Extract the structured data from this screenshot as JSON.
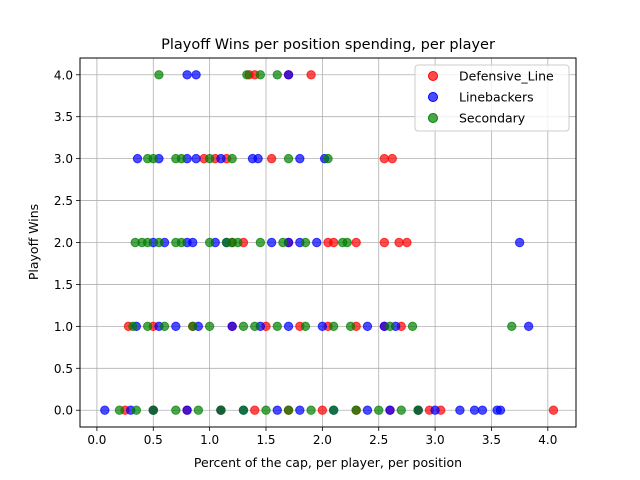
{
  "chart_data": {
    "type": "scatter",
    "title": "Playoff Wins per position spending, per player",
    "xlabel": "Percent of the cap, per player, per position",
    "ylabel": "Playoff Wins",
    "xlim": [
      -0.15,
      4.25
    ],
    "ylim": [
      -0.2,
      4.2
    ],
    "xticks": [
      0.0,
      0.5,
      1.0,
      1.5,
      2.0,
      2.5,
      3.0,
      3.5,
      4.0
    ],
    "xtick_labels": [
      "0.0",
      "0.5",
      "1.0",
      "1.5",
      "2.0",
      "2.5",
      "3.0",
      "3.5",
      "4.0"
    ],
    "yticks": [
      0.0,
      0.5,
      1.0,
      1.5,
      2.0,
      2.5,
      3.0,
      3.5,
      4.0
    ],
    "ytick_labels": [
      "0.0",
      "0.5",
      "1.0",
      "1.5",
      "2.0",
      "2.5",
      "3.0",
      "3.5",
      "4.0"
    ],
    "grid": true,
    "legend_position": "top-right",
    "series": [
      {
        "name": "Defensive_Line",
        "color": "#ff0000",
        "points": [
          [
            1.35,
            4
          ],
          [
            1.4,
            4
          ],
          [
            1.7,
            4
          ],
          [
            1.9,
            4
          ],
          [
            0.95,
            3
          ],
          [
            1.05,
            3
          ],
          [
            1.15,
            3
          ],
          [
            1.55,
            3
          ],
          [
            2.55,
            3
          ],
          [
            2.62,
            3
          ],
          [
            1.2,
            2
          ],
          [
            1.3,
            2
          ],
          [
            1.7,
            2
          ],
          [
            2.05,
            2
          ],
          [
            2.1,
            2
          ],
          [
            2.3,
            2
          ],
          [
            2.55,
            2
          ],
          [
            2.68,
            2
          ],
          [
            2.75,
            2
          ],
          [
            0.28,
            1
          ],
          [
            0.5,
            1
          ],
          [
            0.85,
            1
          ],
          [
            1.2,
            1
          ],
          [
            1.5,
            1
          ],
          [
            1.8,
            1
          ],
          [
            2.05,
            1
          ],
          [
            2.3,
            1
          ],
          [
            2.55,
            1
          ],
          [
            2.7,
            1
          ],
          [
            0.25,
            0
          ],
          [
            0.5,
            0
          ],
          [
            0.8,
            0
          ],
          [
            1.1,
            0
          ],
          [
            1.4,
            0
          ],
          [
            1.7,
            0
          ],
          [
            2.0,
            0
          ],
          [
            2.3,
            0
          ],
          [
            2.6,
            0
          ],
          [
            2.85,
            0
          ],
          [
            2.95,
            0
          ],
          [
            3.05,
            0
          ],
          [
            4.05,
            0
          ]
        ]
      },
      {
        "name": "Linebackers",
        "color": "#0000ff",
        "points": [
          [
            0.8,
            4
          ],
          [
            0.88,
            4
          ],
          [
            1.7,
            4
          ],
          [
            0.36,
            3
          ],
          [
            0.55,
            3
          ],
          [
            0.8,
            3
          ],
          [
            0.88,
            3
          ],
          [
            1.1,
            3
          ],
          [
            1.38,
            3
          ],
          [
            1.43,
            3
          ],
          [
            1.8,
            3
          ],
          [
            2.02,
            3
          ],
          [
            0.5,
            2
          ],
          [
            0.6,
            2
          ],
          [
            0.8,
            2
          ],
          [
            0.85,
            2
          ],
          [
            1.05,
            2
          ],
          [
            1.15,
            2
          ],
          [
            1.55,
            2
          ],
          [
            1.7,
            2
          ],
          [
            1.8,
            2
          ],
          [
            1.95,
            2
          ],
          [
            3.75,
            2
          ],
          [
            0.35,
            1
          ],
          [
            0.55,
            1
          ],
          [
            0.7,
            1
          ],
          [
            0.9,
            1
          ],
          [
            1.2,
            1
          ],
          [
            1.45,
            1
          ],
          [
            1.7,
            1
          ],
          [
            2.0,
            1
          ],
          [
            2.4,
            1
          ],
          [
            2.55,
            1
          ],
          [
            2.65,
            1
          ],
          [
            3.83,
            1
          ],
          [
            0.07,
            0
          ],
          [
            0.3,
            0
          ],
          [
            0.5,
            0
          ],
          [
            0.8,
            0
          ],
          [
            1.1,
            0
          ],
          [
            1.3,
            0
          ],
          [
            1.6,
            0
          ],
          [
            1.8,
            0
          ],
          [
            2.1,
            0
          ],
          [
            2.4,
            0
          ],
          [
            2.6,
            0
          ],
          [
            2.85,
            0
          ],
          [
            3.0,
            0
          ],
          [
            3.22,
            0
          ],
          [
            3.35,
            0
          ],
          [
            3.42,
            0
          ],
          [
            3.55,
            0
          ],
          [
            3.58,
            0
          ]
        ]
      },
      {
        "name": "Secondary",
        "color": "#008000",
        "points": [
          [
            0.55,
            4
          ],
          [
            1.33,
            4
          ],
          [
            1.45,
            4
          ],
          [
            1.6,
            4
          ],
          [
            0.45,
            3
          ],
          [
            0.5,
            3
          ],
          [
            0.7,
            3
          ],
          [
            0.75,
            3
          ],
          [
            1.0,
            3
          ],
          [
            1.2,
            3
          ],
          [
            1.7,
            3
          ],
          [
            2.05,
            3
          ],
          [
            0.34,
            2
          ],
          [
            0.4,
            2
          ],
          [
            0.45,
            2
          ],
          [
            0.55,
            2
          ],
          [
            0.7,
            2
          ],
          [
            0.75,
            2
          ],
          [
            1.0,
            2
          ],
          [
            1.15,
            2
          ],
          [
            1.2,
            2
          ],
          [
            1.25,
            2
          ],
          [
            1.45,
            2
          ],
          [
            1.65,
            2
          ],
          [
            1.85,
            2
          ],
          [
            2.18,
            2
          ],
          [
            2.22,
            2
          ],
          [
            0.32,
            1
          ],
          [
            0.45,
            1
          ],
          [
            0.6,
            1
          ],
          [
            0.85,
            1
          ],
          [
            1.0,
            1
          ],
          [
            1.3,
            1
          ],
          [
            1.4,
            1
          ],
          [
            1.6,
            1
          ],
          [
            1.85,
            1
          ],
          [
            2.1,
            1
          ],
          [
            2.25,
            1
          ],
          [
            2.6,
            1
          ],
          [
            2.8,
            1
          ],
          [
            3.68,
            1
          ],
          [
            0.2,
            0
          ],
          [
            0.35,
            0
          ],
          [
            0.5,
            0
          ],
          [
            0.7,
            0
          ],
          [
            0.9,
            0
          ],
          [
            1.1,
            0
          ],
          [
            1.3,
            0
          ],
          [
            1.5,
            0
          ],
          [
            1.7,
            0
          ],
          [
            1.9,
            0
          ],
          [
            2.1,
            0
          ],
          [
            2.3,
            0
          ],
          [
            2.5,
            0
          ],
          [
            2.7,
            0
          ],
          [
            2.85,
            0
          ]
        ]
      }
    ]
  }
}
